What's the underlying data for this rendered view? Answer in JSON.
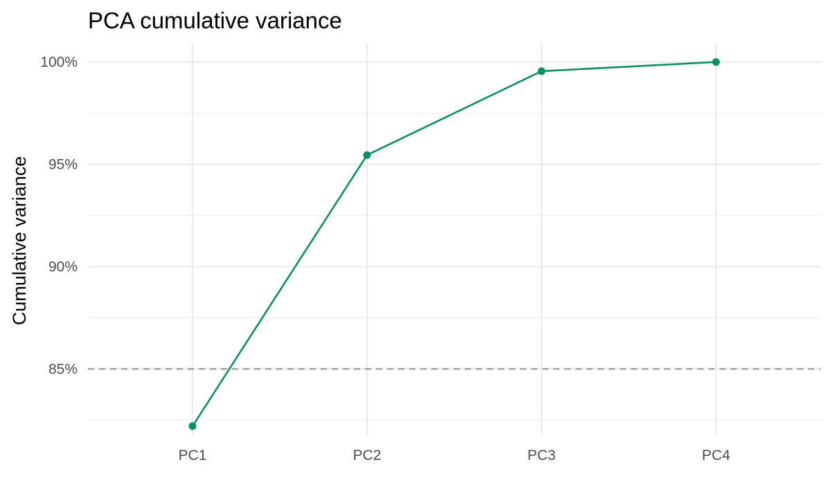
{
  "chart_data": {
    "type": "line",
    "title": "PCA cumulative variance",
    "xlabel": "",
    "ylabel": "Cumulative variance",
    "categories": [
      "PC1",
      "PC2",
      "PC3",
      "PC4"
    ],
    "series": [
      {
        "values": [
          82.2,
          95.45,
          99.55,
          100.0
        ],
        "color": "#0a8f65"
      }
    ],
    "ylim": [
      81.8,
      100.9
    ],
    "y_ticks": [
      {
        "value": 85,
        "label": "85%"
      },
      {
        "value": 90,
        "label": "90%"
      },
      {
        "value": 95,
        "label": "95%"
      },
      {
        "value": 100,
        "label": "100%"
      }
    ],
    "y_minor_ticks": [
      82.5,
      87.5,
      92.5,
      97.5
    ],
    "reference_line": {
      "value": 85,
      "style": "dashed",
      "color": "#999999"
    },
    "grid": true,
    "legend": "none"
  }
}
